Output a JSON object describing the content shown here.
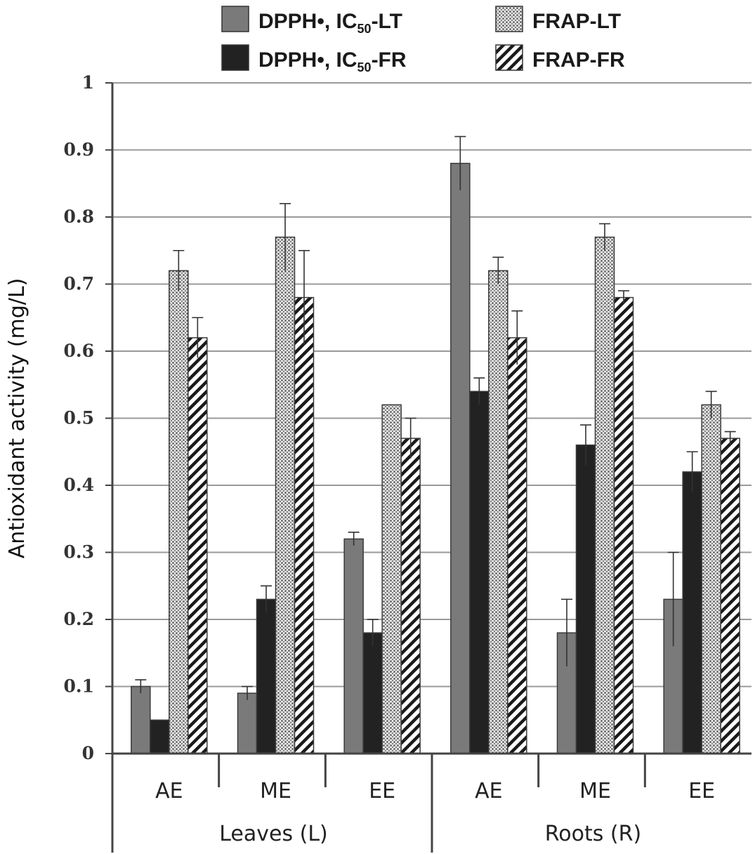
{
  "chart_data": {
    "type": "bar",
    "ylabel": "Antioxidant activity (mg/L)",
    "ylim": [
      0,
      1
    ],
    "yticks": [
      "0",
      "0.1",
      "0.2",
      "0.3",
      "0.4",
      "0.5",
      "0.6",
      "0.7",
      "0.8",
      "0.9",
      "1"
    ],
    "grid": true,
    "legend_position": "top",
    "groups": [
      "Leaves (L)",
      "Roots (R)"
    ],
    "categories": [
      "AE",
      "ME",
      "EE",
      "AE",
      "ME",
      "EE"
    ],
    "series": [
      {
        "name_main": "DPPH•, IC",
        "name_sub": "50",
        "name_tail": "-LT",
        "name": "DPPH•, IC50-LT",
        "fill": "#7a7a7a",
        "pattern": "solid-gray",
        "values": [
          0.1,
          0.09,
          0.32,
          0.88,
          0.18,
          0.23
        ],
        "errors": [
          0.01,
          0.01,
          0.01,
          0.04,
          0.05,
          0.07
        ]
      },
      {
        "name_main": "DPPH•, IC",
        "name_sub": "50",
        "name_tail": "-FR",
        "name": "DPPH•, IC50-FR",
        "fill": "#222222",
        "pattern": "solid-black",
        "values": [
          0.05,
          0.23,
          0.18,
          0.54,
          0.46,
          0.42
        ],
        "errors": [
          0.0,
          0.02,
          0.02,
          0.02,
          0.03,
          0.03
        ]
      },
      {
        "name_main": "FRAP-LT",
        "name_sub": "",
        "name_tail": "",
        "name": "FRAP-LT",
        "fill": "#bdbdbd",
        "pattern": "dotted",
        "values": [
          0.72,
          0.77,
          0.52,
          0.72,
          0.77,
          0.52
        ],
        "errors": [
          0.03,
          0.05,
          0.0,
          0.02,
          0.02,
          0.02
        ]
      },
      {
        "name_main": "FRAP-FR",
        "name_sub": "",
        "name_tail": "",
        "name": "FRAP-FR",
        "fill": "#ffffff",
        "pattern": "diagonal-stripes",
        "values": [
          0.62,
          0.68,
          0.47,
          0.62,
          0.68,
          0.47
        ],
        "errors": [
          0.03,
          0.07,
          0.03,
          0.04,
          0.01,
          0.01
        ]
      }
    ]
  }
}
